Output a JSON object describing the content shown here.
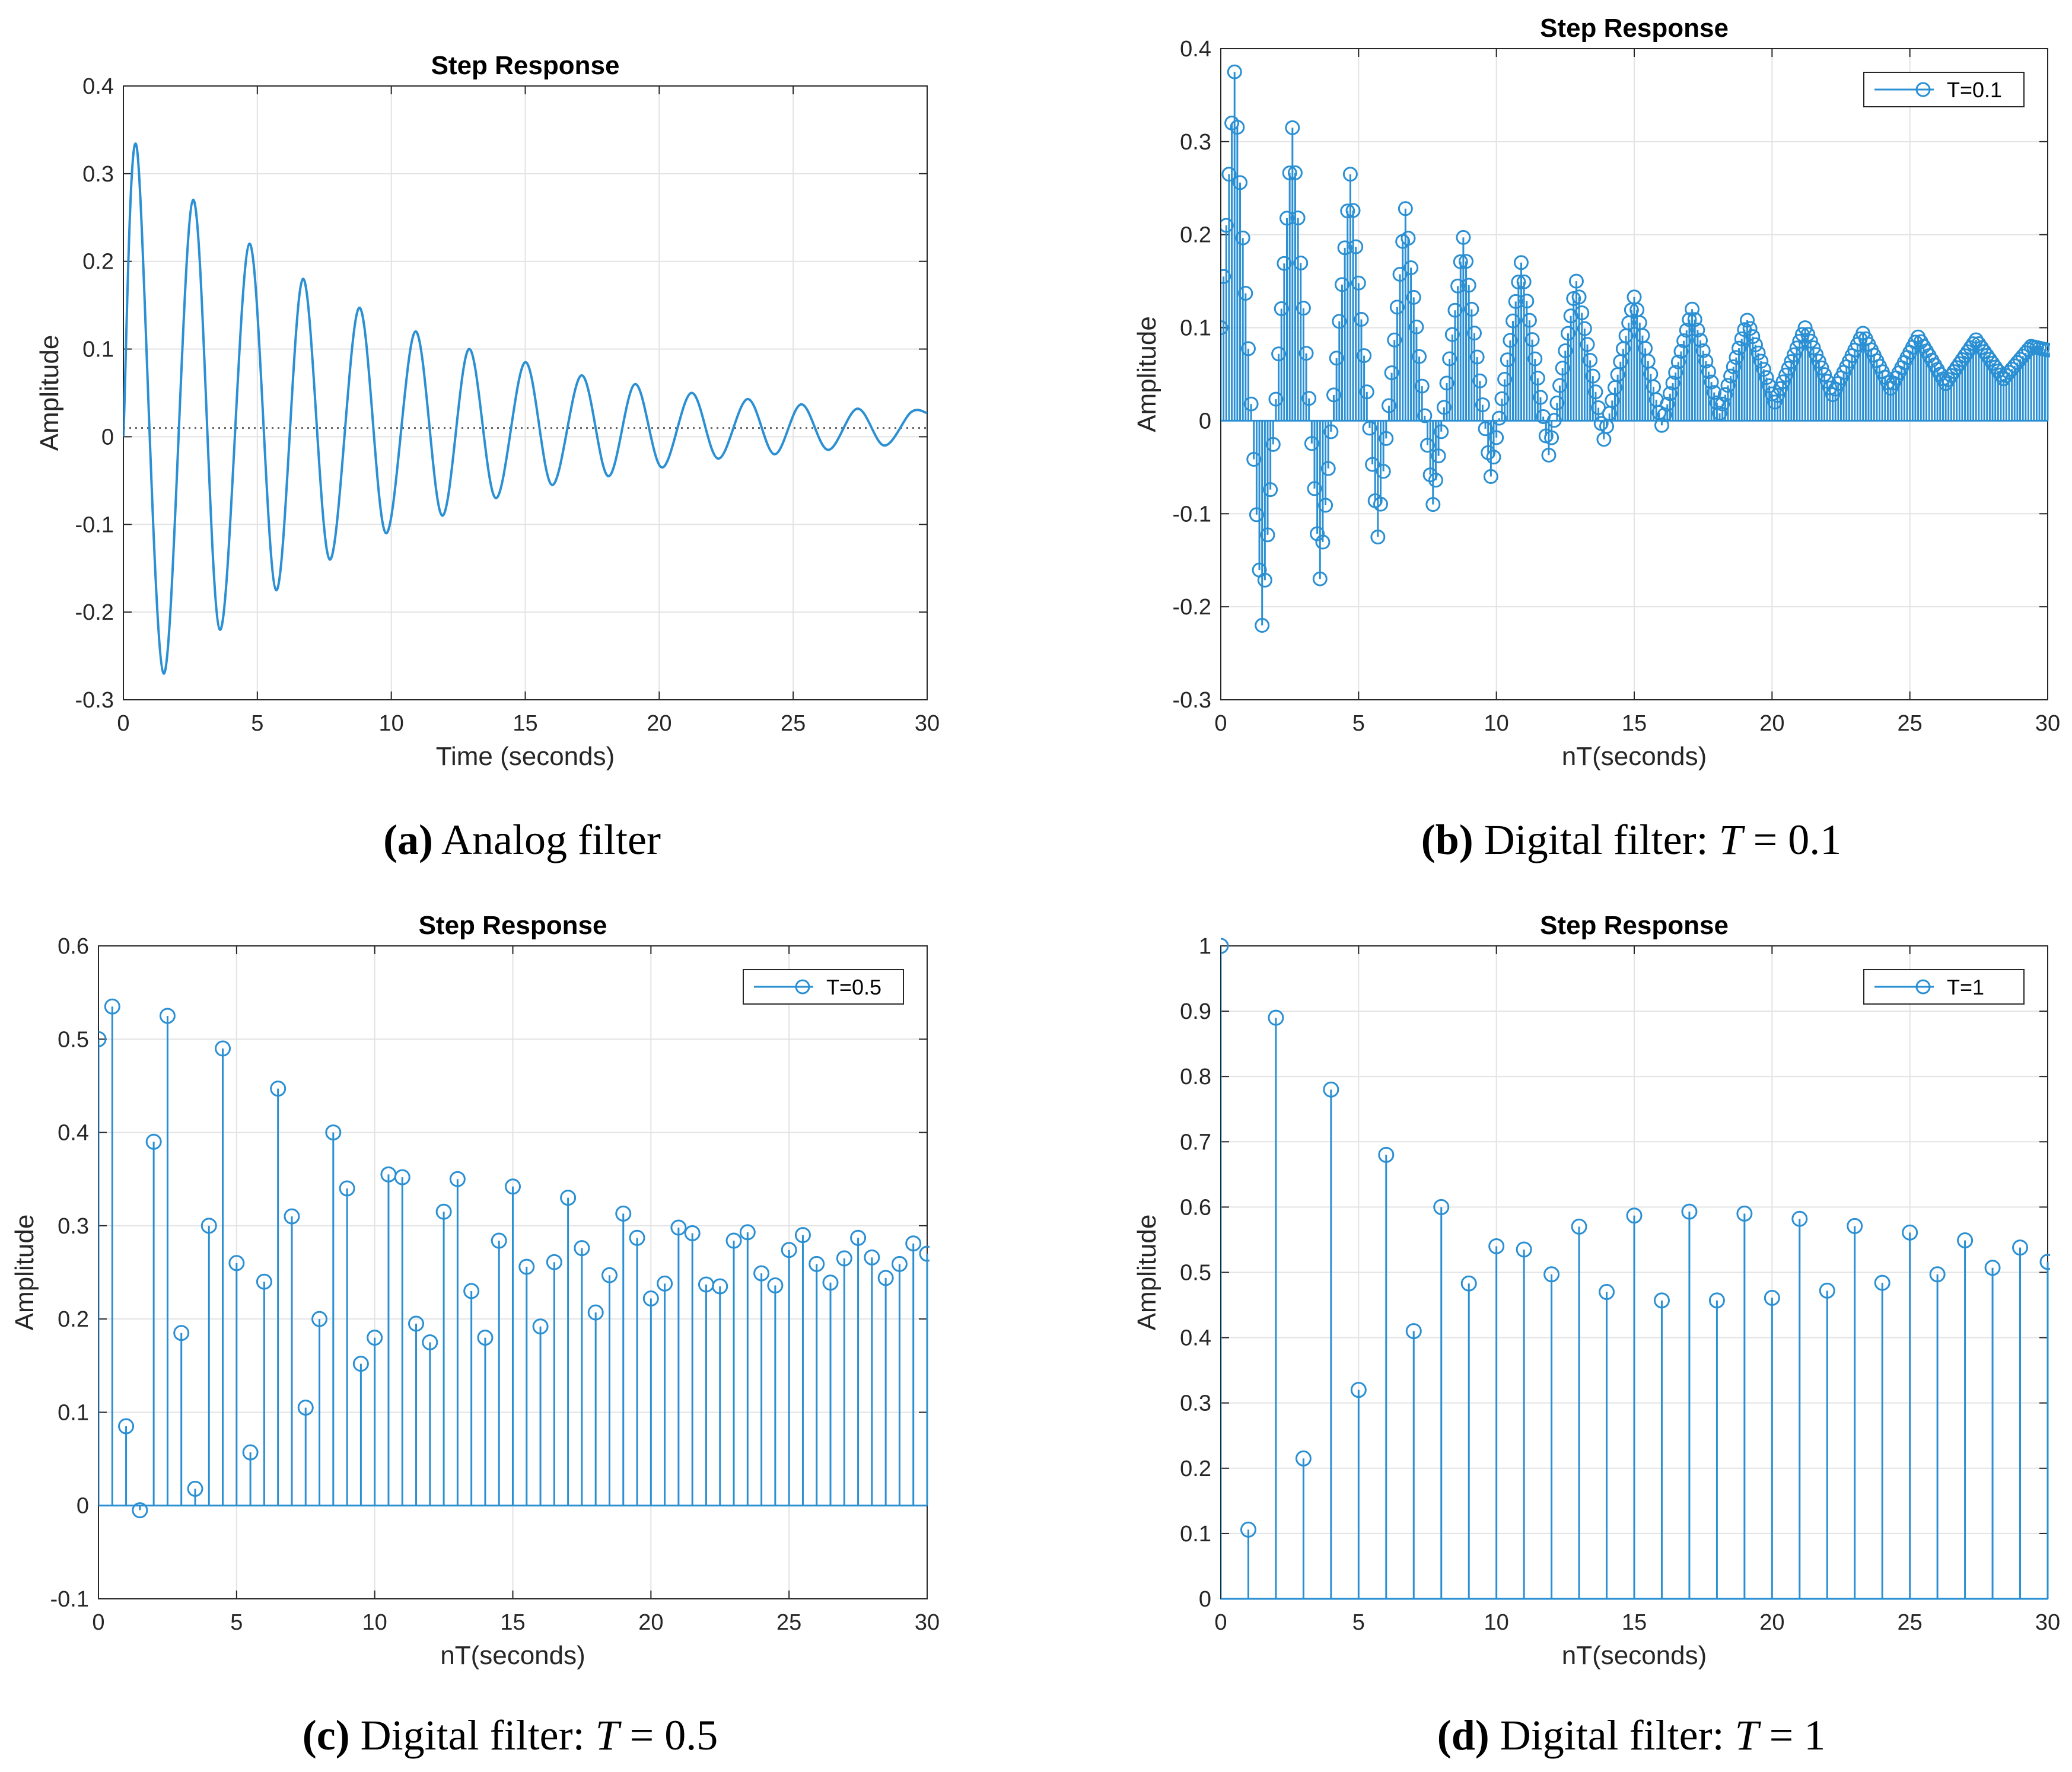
{
  "colors": {
    "series": "#2a8fd3",
    "grid": "#e3e3e3",
    "axis": "#262626",
    "reference": "#606060"
  },
  "chart_data": [
    {
      "id": "a",
      "type": "line",
      "title": "Step Response",
      "xlabel": "Time (seconds)",
      "ylabel": "Amplitude",
      "xlim": [
        0,
        30
      ],
      "ylim": [
        -0.3,
        0.4
      ],
      "xticks": [
        "0",
        "5",
        "10",
        "15",
        "20",
        "25",
        "30"
      ],
      "yticks": [
        "-0.3",
        "-0.2",
        "-0.1",
        "0",
        "0.1",
        "0.2",
        "0.3",
        "0.4"
      ],
      "grid": true,
      "reference_line": {
        "y": 0.01,
        "style": "dotted"
      },
      "series": [
        {
          "x": [
            0,
            0.5,
            1.5,
            2.6,
            3.6,
            4.7,
            5.7,
            6.7,
            7.7,
            8.8,
            9.8,
            10.9,
            11.9,
            12.9,
            13.9,
            15.0,
            16.0,
            17.1,
            18.1,
            19.1,
            20.1,
            21.2,
            22.2,
            23.3,
            24.3,
            25.3,
            26.3,
            27.4,
            28.4,
            29.4,
            30
          ],
          "values": [
            0,
            0.33,
            -0.27,
            0.27,
            -0.22,
            0.22,
            -0.175,
            0.18,
            -0.14,
            0.147,
            -0.11,
            0.12,
            -0.09,
            0.1,
            -0.07,
            0.085,
            -0.055,
            0.07,
            -0.045,
            0.06,
            -0.035,
            0.05,
            -0.025,
            0.043,
            -0.02,
            0.037,
            -0.015,
            0.032,
            -0.01,
            0.028,
            0.027
          ]
        }
      ],
      "caption": {
        "label": "(a)",
        "text": "Analog filter"
      }
    },
    {
      "id": "b",
      "type": "stem",
      "title": "Step Response",
      "xlabel": "nT(seconds)",
      "ylabel": "Amplitude",
      "xlim": [
        0,
        30
      ],
      "ylim": [
        -0.3,
        0.4
      ],
      "xticks": [
        "0",
        "5",
        "10",
        "15",
        "20",
        "25",
        "30"
      ],
      "yticks": [
        "-0.3",
        "-0.2",
        "-0.1",
        "0",
        "0.1",
        "0.2",
        "0.3",
        "0.4"
      ],
      "grid": true,
      "legend": {
        "entries": [
          "T=0.1"
        ],
        "position": "top-right"
      },
      "series": [
        {
          "name": "T=0.1",
          "sample_interval": 0.1,
          "envelope": {
            "x": [
              0,
              0.5,
              1.5,
              2.6,
              3.6,
              4.7,
              5.7,
              6.7,
              7.7,
              8.8,
              9.8,
              10.9,
              11.9,
              12.9,
              13.9,
              15.0,
              16.0,
              17.1,
              18.1,
              19.1,
              20.1,
              21.2,
              22.2,
              23.3,
              24.3,
              25.3,
              26.3,
              27.4,
              28.4,
              29.4,
              30
            ],
            "values": [
              0.1,
              0.375,
              -0.22,
              0.315,
              -0.17,
              0.265,
              -0.125,
              0.228,
              -0.09,
              0.197,
              -0.06,
              0.17,
              -0.037,
              0.15,
              -0.02,
              0.133,
              -0.005,
              0.12,
              0.008,
              0.108,
              0.02,
              0.1,
              0.028,
              0.094,
              0.035,
              0.09,
              0.04,
              0.087,
              0.045,
              0.08,
              0.076
            ]
          }
        }
      ],
      "caption": {
        "label": "(b)",
        "text": "Digital filter: ",
        "var": "T",
        "value": " = 0.1"
      }
    },
    {
      "id": "c",
      "type": "stem",
      "title": "Step Response",
      "xlabel": "nT(seconds)",
      "ylabel": "Amplitude",
      "xlim": [
        0,
        30
      ],
      "ylim": [
        -0.1,
        0.6
      ],
      "xticks": [
        "0",
        "5",
        "10",
        "15",
        "20",
        "25",
        "30"
      ],
      "yticks": [
        "-0.1",
        "0",
        "0.1",
        "0.2",
        "0.3",
        "0.4",
        "0.5",
        "0.6"
      ],
      "grid": true,
      "legend": {
        "entries": [
          "T=0.5"
        ],
        "position": "top-right"
      },
      "series": [
        {
          "name": "T=0.5",
          "x": [
            0,
            0.5,
            1,
            1.5,
            2,
            2.5,
            3,
            3.5,
            4,
            4.5,
            5,
            5.5,
            6,
            6.5,
            7,
            7.5,
            8,
            8.5,
            9,
            9.5,
            10,
            10.5,
            11,
            11.5,
            12,
            12.5,
            13,
            13.5,
            14,
            14.5,
            15,
            15.5,
            16,
            16.5,
            17,
            17.5,
            18,
            18.5,
            19,
            19.5,
            20,
            20.5,
            21,
            21.5,
            22,
            22.5,
            23,
            23.5,
            24,
            24.5,
            25,
            25.5,
            26,
            26.5,
            27,
            27.5,
            28,
            28.5,
            29,
            29.5,
            30
          ],
          "values": [
            0.5,
            0.535,
            0.085,
            -0.005,
            0.39,
            0.525,
            0.185,
            0.018,
            0.3,
            0.49,
            0.26,
            0.057,
            0.24,
            0.447,
            0.31,
            0.105,
            0.2,
            0.4,
            0.34,
            0.152,
            0.18,
            0.355,
            0.352,
            0.195,
            0.175,
            0.315,
            0.35,
            0.23,
            0.18,
            0.284,
            0.342,
            0.256,
            0.192,
            0.261,
            0.33,
            0.276,
            0.207,
            0.247,
            0.313,
            0.287,
            0.222,
            0.238,
            0.298,
            0.292,
            0.237,
            0.235,
            0.284,
            0.293,
            0.249,
            0.236,
            0.274,
            0.29,
            0.259,
            0.239,
            0.265,
            0.287,
            0.266,
            0.244,
            0.259,
            0.281,
            0.27
          ]
        }
      ],
      "caption": {
        "label": "(c)",
        "text": "Digital filter: ",
        "var": "T",
        "value": " = 0.5"
      }
    },
    {
      "id": "d",
      "type": "stem",
      "title": "Step Response",
      "xlabel": "nT(seconds)",
      "ylabel": "Amplitude",
      "xlim": [
        0,
        30
      ],
      "ylim": [
        0,
        1
      ],
      "xticks": [
        "0",
        "5",
        "10",
        "15",
        "20",
        "25",
        "30"
      ],
      "yticks": [
        "0",
        "0.1",
        "0.2",
        "0.3",
        "0.4",
        "0.5",
        "0.6",
        "0.7",
        "0.8",
        "0.9",
        "1"
      ],
      "grid": true,
      "legend": {
        "entries": [
          "T=1"
        ],
        "position": "top-right"
      },
      "series": [
        {
          "name": "T=1",
          "x": [
            0,
            1,
            2,
            3,
            4,
            5,
            6,
            7,
            8,
            9,
            10,
            11,
            12,
            13,
            14,
            15,
            16,
            17,
            18,
            19,
            20,
            21,
            22,
            23,
            24,
            25,
            26,
            27,
            28,
            29,
            30
          ],
          "values": [
            1.0,
            0.106,
            0.89,
            0.215,
            0.78,
            0.32,
            0.68,
            0.41,
            0.6,
            0.483,
            0.54,
            0.535,
            0.497,
            0.57,
            0.47,
            0.587,
            0.457,
            0.593,
            0.457,
            0.59,
            0.461,
            0.582,
            0.472,
            0.571,
            0.484,
            0.561,
            0.497,
            0.549,
            0.507,
            0.538,
            0.516
          ]
        }
      ],
      "caption": {
        "label": "(d)",
        "text": "Digital filter: ",
        "var": "T",
        "value": " = 1"
      }
    }
  ]
}
